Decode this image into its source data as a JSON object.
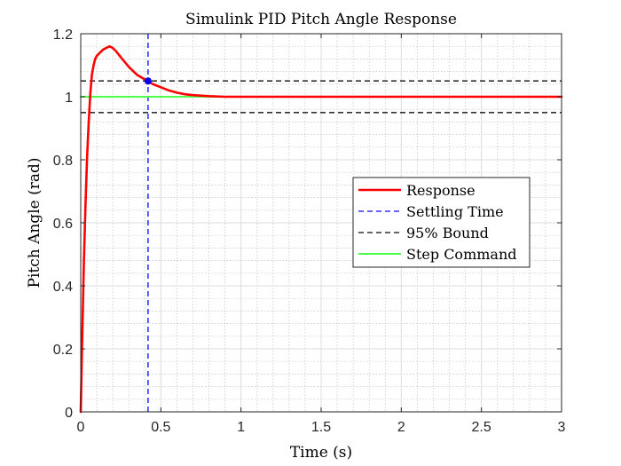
{
  "chart_data": {
    "type": "line",
    "title": "Simulink PID Pitch Angle Response",
    "xlabel": "Time (s)",
    "ylabel": "Pitch Angle (rad)",
    "xlim": [
      0,
      3
    ],
    "ylim": [
      0,
      1.2
    ],
    "xticks": [
      0,
      0.5,
      1,
      1.5,
      2,
      2.5,
      3
    ],
    "xtick_labels": [
      "0",
      "0.5",
      "1",
      "1.5",
      "2",
      "2.5",
      "3"
    ],
    "yticks": [
      0,
      0.2,
      0.4,
      0.6,
      0.8,
      1,
      1.2
    ],
    "ytick_labels": [
      "0",
      "0.2",
      "0.4",
      "0.6",
      "0.8",
      "1",
      "1.2"
    ],
    "grid": "major and minor",
    "legend_position": "center-right",
    "series": [
      {
        "name": "Response",
        "color": "#ff0000",
        "style": "solid",
        "x": [
          0,
          0.01,
          0.02,
          0.03,
          0.04,
          0.05,
          0.06,
          0.07,
          0.08,
          0.09,
          0.1,
          0.12,
          0.14,
          0.16,
          0.18,
          0.2,
          0.22,
          0.25,
          0.3,
          0.35,
          0.4,
          0.42,
          0.45,
          0.5,
          0.55,
          0.6,
          0.65,
          0.7,
          0.8,
          0.9,
          1.0,
          1.2,
          1.5,
          2.0,
          2.5,
          3.0
        ],
        "y": [
          0,
          0.25,
          0.48,
          0.66,
          0.81,
          0.92,
          1.01,
          1.07,
          1.1,
          1.12,
          1.13,
          1.14,
          1.15,
          1.155,
          1.16,
          1.155,
          1.145,
          1.125,
          1.095,
          1.07,
          1.055,
          1.05,
          1.04,
          1.03,
          1.02,
          1.013,
          1.008,
          1.005,
          1.002,
          1.0,
          1.0,
          1.0,
          1.0,
          1.0,
          1.0,
          1.0
        ]
      },
      {
        "name": "Settling Time",
        "color": "#3333ff",
        "style": "dashed",
        "x": [
          0.42,
          0.42
        ],
        "y": [
          0,
          1.2
        ]
      },
      {
        "name": "95% Bound",
        "color": "#333333",
        "style": "dashed",
        "x": [
          0,
          3
        ],
        "y": [
          1.05,
          1.05
        ]
      },
      {
        "name": "95% Bound",
        "color": "#333333",
        "style": "dashed",
        "x": [
          0,
          3
        ],
        "y": [
          0.95,
          0.95
        ],
        "in_legend": false
      },
      {
        "name": "Step Command",
        "color": "#4dff4d",
        "style": "solid",
        "x": [
          0,
          3
        ],
        "y": [
          1,
          1
        ]
      }
    ],
    "marker": {
      "x": 0.42,
      "y": 1.05,
      "color": "#0000ee"
    },
    "legend": [
      "Response",
      "Settling Time",
      "95% Bound",
      "Step Command"
    ]
  }
}
